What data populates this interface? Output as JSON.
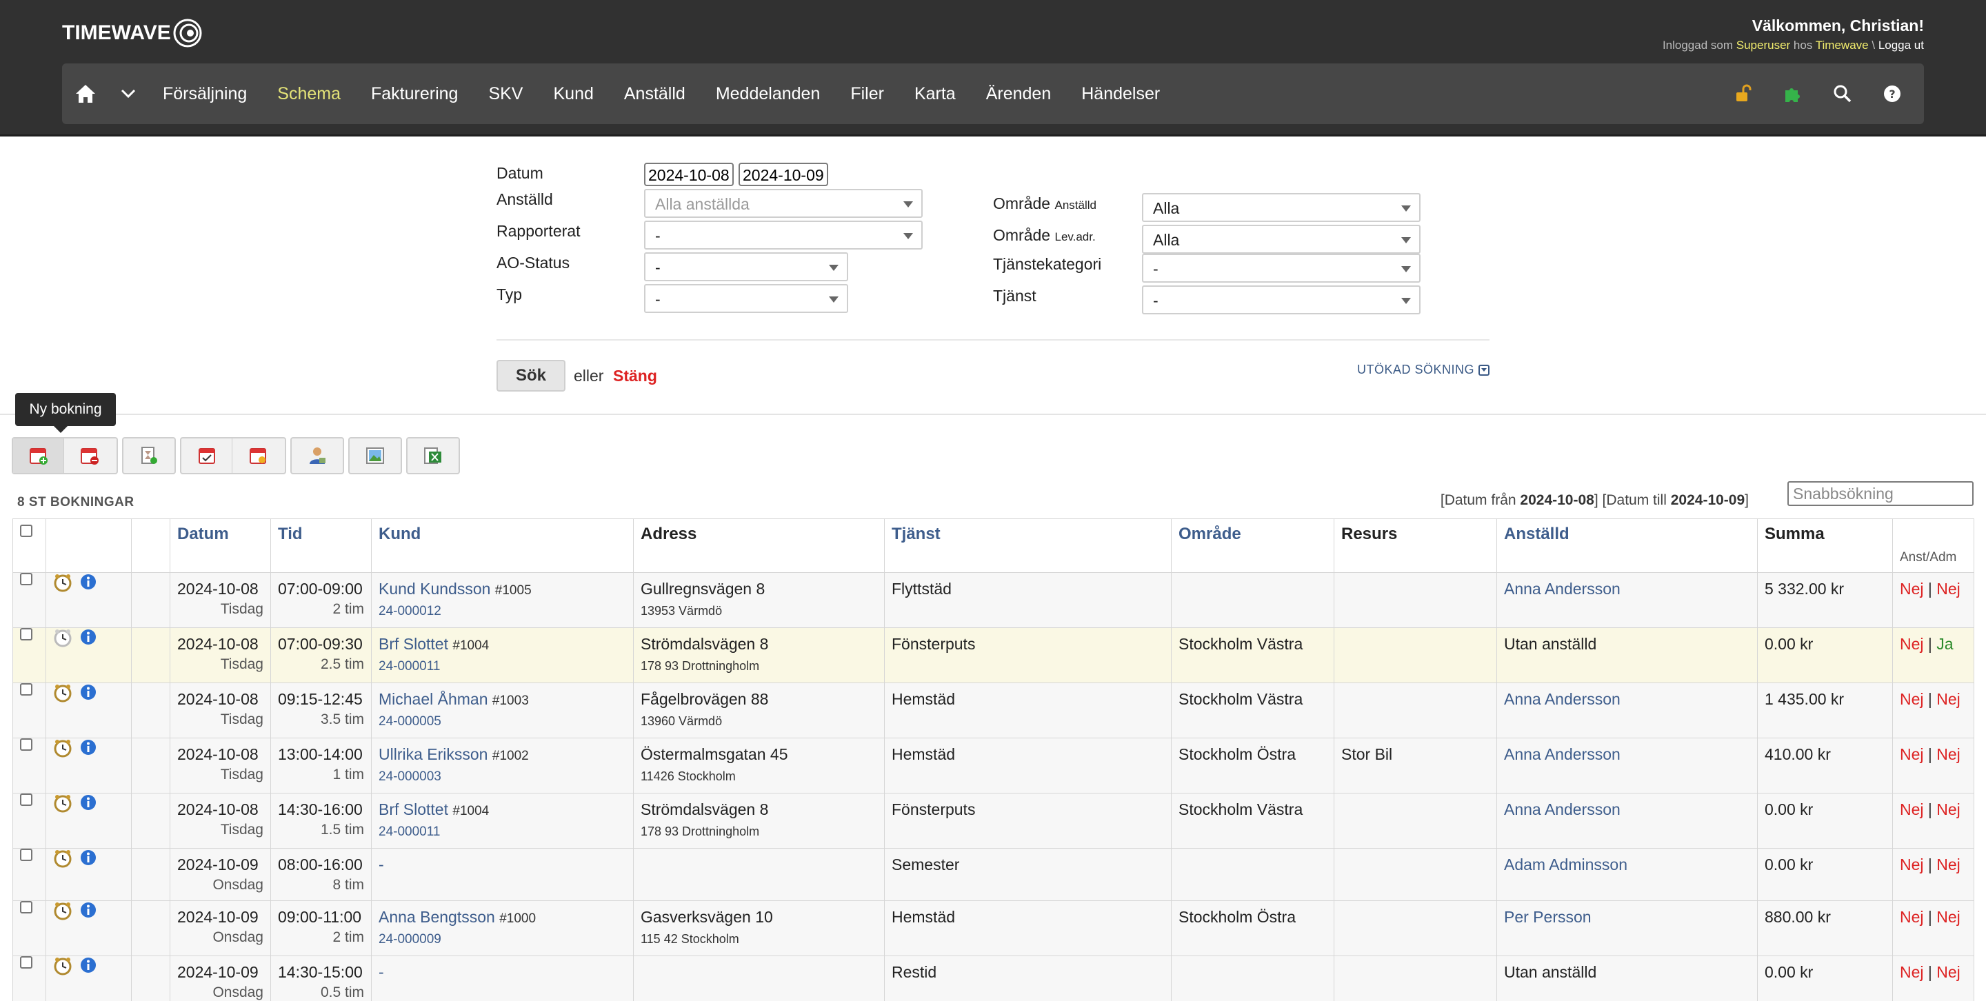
{
  "header": {
    "logo_text": "TIMEWAVE",
    "welcome": "Välkommen, Christian!",
    "logged_in_as": "Inloggad som",
    "role": "Superuser",
    "at": "hos",
    "company": "Timewave",
    "separator": "\\",
    "logout": "Logga ut"
  },
  "nav": {
    "items": [
      "Försäljning",
      "Schema",
      "Fakturering",
      "SKV",
      "Kund",
      "Anställd",
      "Meddelanden",
      "Filer",
      "Karta",
      "Ärenden",
      "Händelser"
    ],
    "active": "Schema"
  },
  "form": {
    "datum_label": "Datum",
    "date_from": "2024-10-08",
    "date_to": "2024-10-09",
    "anstalld_label": "Anställd",
    "anstalld_value": "Alla anställda",
    "rapporterat_label": "Rapporterat",
    "rapporterat_value": "-",
    "ao_status_label": "AO-Status",
    "ao_status_value": "-",
    "typ_label": "Typ",
    "typ_value": "-",
    "omrade_anst_label": "Område",
    "omrade_anst_small": "Anställd",
    "omrade_anst_value": "Alla",
    "omrade_lev_label": "Område",
    "omrade_lev_small": "Lev.adr.",
    "omrade_lev_value": "Alla",
    "tjanstekategori_label": "Tjänstekategori",
    "tjanstekategori_value": "-",
    "tjanst_label": "Tjänst",
    "tjanst_value": "-",
    "search_button": "Sök",
    "or_text": "eller",
    "close_link": "Stäng",
    "extended_search": "UTÖKAD SÖKNING"
  },
  "toolbar": {
    "tooltip": "Ny bokning"
  },
  "list": {
    "count_label": "8 ST BOKNINGAR",
    "range_from_label": "Datum från",
    "range_from": "2024-10-08",
    "range_to_label": "Datum till",
    "range_to": "2024-10-09",
    "quick_search_placeholder": "Snabbsökning"
  },
  "table": {
    "headers": {
      "datum": "Datum",
      "tid": "Tid",
      "kund": "Kund",
      "adress": "Adress",
      "tjanst": "Tjänst",
      "omrade": "Område",
      "resurs": "Resurs",
      "anstalld": "Anställd",
      "summa": "Summa",
      "anst_adm": "Anst/Adm"
    },
    "rows": [
      {
        "date": "2024-10-08",
        "weekday": "Tisdag",
        "time": "07:00-09:00",
        "duration": "2 tim",
        "customer": "Kund Kundsson",
        "customer_no": "#1005",
        "order": "24-000012",
        "address": "Gullregnsvägen 8",
        "postal": "13953 Värmdö",
        "service": "Flyttstäd",
        "area": "",
        "resource": "",
        "employee": "Anna Andersson",
        "sum": "5 332.00 kr",
        "anst": "Nej",
        "sep": "|",
        "adm": "Nej"
      },
      {
        "date": "2024-10-08",
        "weekday": "Tisdag",
        "time": "07:00-09:30",
        "duration": "2.5 tim",
        "customer": "Brf Slottet",
        "customer_no": "#1004",
        "order": "24-000011",
        "address": "Strömdalsvägen 8",
        "postal": "178 93 Drottningholm",
        "service": "Fönsterputs",
        "area": "Stockholm Västra",
        "resource": "",
        "employee": "Utan anställd",
        "sum": "0.00 kr",
        "anst": "Nej",
        "sep": "|",
        "adm": "Ja"
      },
      {
        "date": "2024-10-08",
        "weekday": "Tisdag",
        "time": "09:15-12:45",
        "duration": "3.5 tim",
        "customer": "Michael Åhman",
        "customer_no": "#1003",
        "order": "24-000005",
        "address": "Fågelbrovägen 88",
        "postal": "13960 Värmdö",
        "service": "Hemstäd",
        "area": "Stockholm Västra",
        "resource": "",
        "employee": "Anna Andersson",
        "sum": "1 435.00 kr",
        "anst": "Nej",
        "sep": "|",
        "adm": "Nej"
      },
      {
        "date": "2024-10-08",
        "weekday": "Tisdag",
        "time": "13:00-14:00",
        "duration": "1 tim",
        "customer": "Ullrika Eriksson",
        "customer_no": "#1002",
        "order": "24-000003",
        "address": "Östermalmsgatan 45",
        "postal": "11426 Stockholm",
        "service": "Hemstäd",
        "area": "Stockholm Östra",
        "resource": "Stor Bil",
        "employee": "Anna Andersson",
        "sum": "410.00 kr",
        "anst": "Nej",
        "sep": "|",
        "adm": "Nej"
      },
      {
        "date": "2024-10-08",
        "weekday": "Tisdag",
        "time": "14:30-16:00",
        "duration": "1.5 tim",
        "customer": "Brf Slottet",
        "customer_no": "#1004",
        "order": "24-000011",
        "address": "Strömdalsvägen 8",
        "postal": "178 93 Drottningholm",
        "service": "Fönsterputs",
        "area": "Stockholm Västra",
        "resource": "",
        "employee": "Anna Andersson",
        "sum": "0.00 kr",
        "anst": "Nej",
        "sep": "|",
        "adm": "Nej"
      },
      {
        "date": "2024-10-09",
        "weekday": "Onsdag",
        "time": "08:00-16:00",
        "duration": "8 tim",
        "customer": "-",
        "customer_no": "",
        "order": "",
        "address": "",
        "postal": "",
        "service": "Semester",
        "area": "",
        "resource": "",
        "employee": "Adam Adminsson",
        "sum": "0.00 kr",
        "anst": "Nej",
        "sep": "|",
        "adm": "Nej"
      },
      {
        "date": "2024-10-09",
        "weekday": "Onsdag",
        "time": "09:00-11:00",
        "duration": "2 tim",
        "customer": "Anna Bengtsson",
        "customer_no": "#1000",
        "order": "24-000009",
        "address": "Gasverksvägen 10",
        "postal": "115 42 Stockholm",
        "service": "Hemstäd",
        "area": "Stockholm Östra",
        "resource": "",
        "employee": "Per Persson",
        "sum": "880.00 kr",
        "anst": "Nej",
        "sep": "|",
        "adm": "Nej"
      },
      {
        "date": "2024-10-09",
        "weekday": "Onsdag",
        "time": "14:30-15:00",
        "duration": "0.5 tim",
        "customer": "-",
        "customer_no": "",
        "order": "",
        "address": "",
        "postal": "",
        "service": "Restid",
        "area": "",
        "resource": "",
        "employee": "Utan anställd",
        "sum": "0.00 kr",
        "anst": "Nej",
        "sep": "|",
        "adm": "Nej"
      }
    ]
  }
}
